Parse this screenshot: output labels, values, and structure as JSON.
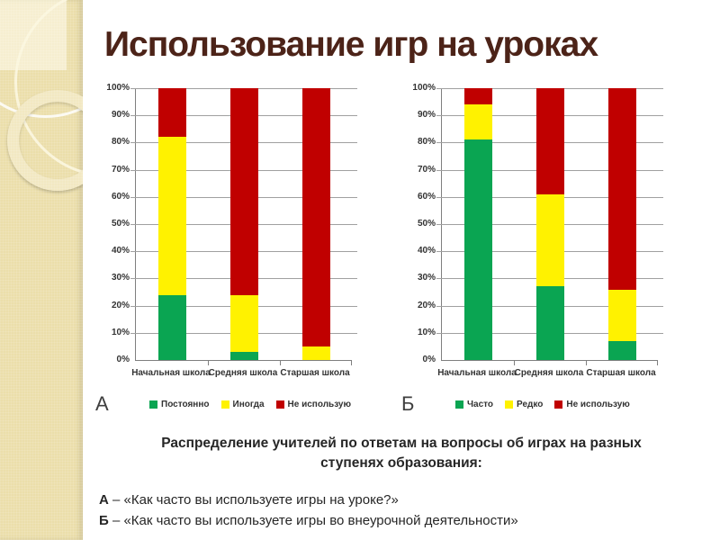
{
  "slide": {
    "title": "Использование игр на уроках"
  },
  "colors": {
    "green": "#0aa552",
    "yellow": "#fff200",
    "red": "#c00000",
    "maroon": "#4c2318",
    "beige": "#ebdeaa"
  },
  "chart_data": [
    {
      "type": "bar",
      "stacked": true,
      "units": "percent",
      "label": "А",
      "categories": [
        "Начальная школа",
        "Средняя школа",
        "Старшая школа"
      ],
      "series": [
        {
          "name": "Постоянно",
          "color": "green",
          "values": [
            24,
            3,
            0
          ]
        },
        {
          "name": "Иногда",
          "color": "yellow",
          "values": [
            58,
            21,
            5
          ]
        },
        {
          "name": "Не использую",
          "color": "red",
          "values": [
            18,
            76,
            95
          ]
        }
      ],
      "y_ticks": [
        "100%",
        "90%",
        "80%",
        "70%",
        "60%",
        "50%",
        "40%",
        "30%",
        "20%",
        "10%",
        "0%"
      ],
      "ylim": [
        0,
        100
      ],
      "grid": true,
      "legend_position": "bottom"
    },
    {
      "type": "bar",
      "stacked": true,
      "units": "percent",
      "label": "Б",
      "categories": [
        "Начальная школа",
        "Средняя школа",
        "Старшая школа"
      ],
      "series": [
        {
          "name": "Часто",
          "color": "green",
          "values": [
            81,
            27,
            7
          ]
        },
        {
          "name": "Редко",
          "color": "yellow",
          "values": [
            13,
            34,
            19
          ]
        },
        {
          "name": "Не использую",
          "color": "red",
          "values": [
            6,
            39,
            74
          ]
        }
      ],
      "y_ticks": [
        "100%",
        "90%",
        "80%",
        "70%",
        "60%",
        "50%",
        "40%",
        "30%",
        "20%",
        "10%",
        "0%"
      ],
      "ylim": [
        0,
        100
      ],
      "grid": true,
      "legend_position": "bottom"
    }
  ],
  "caption": {
    "heading": "Распределение учителей по ответам на вопросы об играх на разных ступенях образования:",
    "lines": [
      {
        "prefix": "А",
        "text": " – «Как часто вы используете игры на уроке?»"
      },
      {
        "prefix": "Б",
        "text": " – «Как часто вы используете игры во внеурочной деятельности»"
      }
    ]
  }
}
